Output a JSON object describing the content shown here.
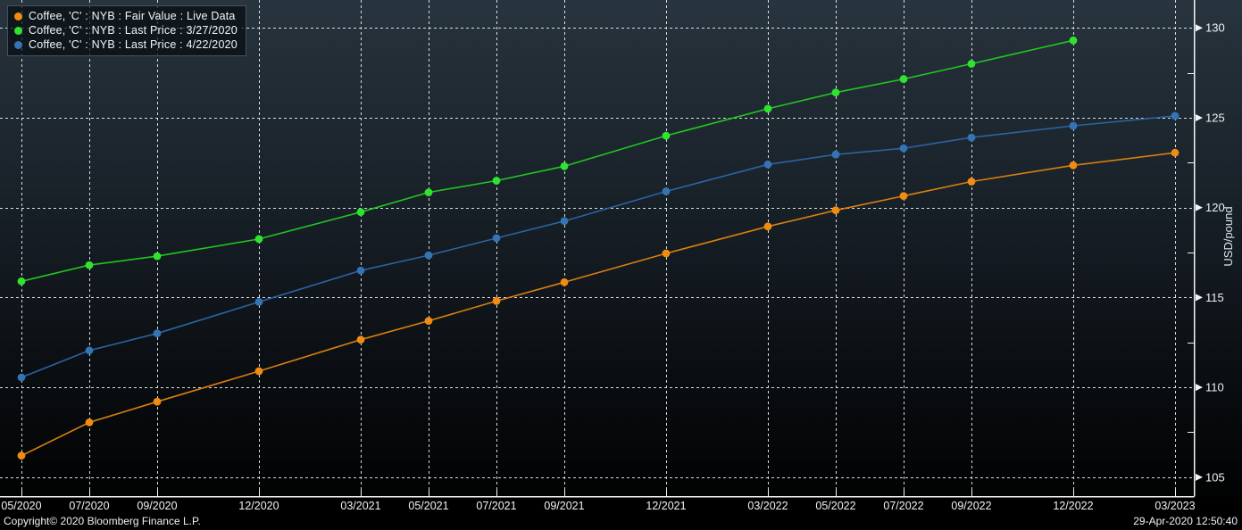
{
  "legend_note": "legend labels come from chart_data.series names",
  "footer": {
    "copyright": "Copyright© 2020 Bloomberg Finance L.P.",
    "timestamp": "29-Apr-2020 12:50:40"
  },
  "colors": {
    "background_top": "#28353f",
    "background_bottom": "#000000",
    "grid": "#e9edf0",
    "axis": "#f3f6f8",
    "text": "#eef1f4",
    "legend_border": "#44505d"
  },
  "chart_data": {
    "type": "line",
    "title": "",
    "xlabel": "",
    "ylabel": "USD/pound",
    "grid": "dashed-white",
    "legend_position": "top-left",
    "categories": [
      "05/2020",
      "07/2020",
      "09/2020",
      "12/2020",
      "03/2021",
      "05/2021",
      "07/2021",
      "09/2021",
      "12/2021",
      "03/2022",
      "05/2022",
      "07/2022",
      "09/2022",
      "12/2022",
      "03/2023"
    ],
    "category_month_offsets": [
      0,
      2,
      4,
      7,
      10,
      12,
      14,
      16,
      19,
      22,
      24,
      26,
      28,
      31,
      34
    ],
    "y_ticks": [
      105,
      110,
      115,
      120,
      125,
      130
    ],
    "y_minor_ticks": [
      107.5,
      112.5,
      117.5,
      122.5,
      127.5
    ],
    "ylim": [
      103.95,
      131.55
    ],
    "series": [
      {
        "name": "Coffee, 'C' : NYB : Fair Value : Live Data",
        "color": "#D97F10",
        "marker_color": "#F08C12",
        "values": [
          106.2,
          108.05,
          109.2,
          110.9,
          112.65,
          113.7,
          114.8,
          115.85,
          117.45,
          118.95,
          119.85,
          120.65,
          121.45,
          122.35,
          123.05
        ]
      },
      {
        "name": "Coffee, 'C' : NYB : Last Price : 3/27/2020",
        "color": "#23C423",
        "marker_color": "#30E330",
        "values": [
          115.9,
          116.8,
          117.3,
          118.25,
          119.75,
          120.85,
          121.5,
          122.3,
          124.0,
          125.5,
          126.4,
          127.15,
          128.0,
          129.3,
          null
        ]
      },
      {
        "name": "Coffee, 'C' : NYB : Last Price : 4/22/2020",
        "color": "#2B63A2",
        "marker_color": "#3574B4",
        "values": [
          110.55,
          112.05,
          113.0,
          114.75,
          116.5,
          117.35,
          118.3,
          119.25,
          120.9,
          122.4,
          122.95,
          123.3,
          123.9,
          124.55,
          125.1
        ]
      }
    ]
  }
}
